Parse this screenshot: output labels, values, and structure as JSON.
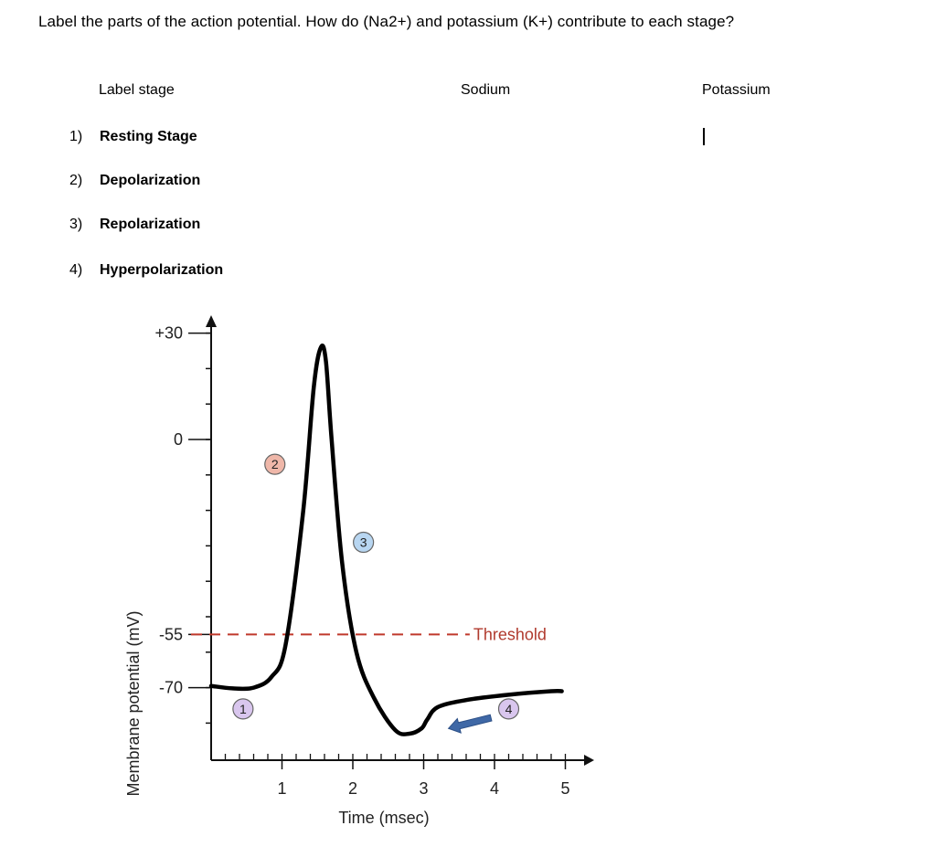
{
  "question": "Label the parts of the action potential. How do (Na2+) and potassium (K+) contribute to each stage?",
  "table": {
    "headers": {
      "stage": "Label stage",
      "sodium": "Sodium",
      "potassium": "Potassium"
    },
    "rows": [
      {
        "num": "1)",
        "label": "Resting Stage"
      },
      {
        "num": "2)",
        "label": "Depolarization"
      },
      {
        "num": "3)",
        "label": "Repolarization"
      },
      {
        "num": "4)",
        "label": "Hyperpolarization"
      }
    ]
  },
  "chart_data": {
    "type": "line",
    "xlabel": "Time (msec)",
    "ylabel": "Membrane potential (mV)",
    "x_ticks": [
      "1",
      "2",
      "3",
      "4",
      "5"
    ],
    "y_ticks": [
      "+30",
      "0",
      "-55",
      "-70"
    ],
    "xlim": [
      0,
      5
    ],
    "ylim": [
      -85,
      35
    ],
    "threshold": {
      "value": -55,
      "label": "Threshold"
    },
    "series": [
      {
        "color": "#000000",
        "x": [
          0,
          0.3,
          0.6,
          0.85,
          1.05,
          1.3,
          1.45,
          1.55,
          1.62,
          1.7,
          1.85,
          2.05,
          2.3,
          2.6,
          2.8,
          2.97,
          3.05,
          3.2,
          3.6,
          4.2,
          4.8,
          4.95
        ],
        "y": [
          -69.5,
          -70.2,
          -70,
          -67,
          -58,
          -20,
          15,
          26,
          22,
          0,
          -35,
          -60,
          -73,
          -82,
          -83,
          -81.5,
          -79,
          -75.5,
          -73.5,
          -72,
          -71,
          -71
        ]
      }
    ],
    "stage_markers": [
      {
        "label": "1",
        "x": 0.45,
        "y": -76,
        "color": "#d9c6ee"
      },
      {
        "label": "2",
        "x": 0.9,
        "y": -7,
        "color": "#efb7a9"
      },
      {
        "label": "3",
        "x": 2.15,
        "y": -29,
        "color": "#b8d6f1"
      },
      {
        "label": "4",
        "x": 4.2,
        "y": -76,
        "color": "#d9c6ee"
      }
    ],
    "arrow_color": "#3f68a6"
  }
}
